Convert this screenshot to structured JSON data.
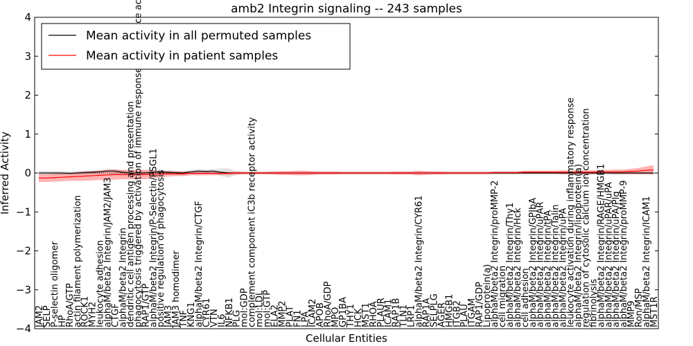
{
  "chart_data": {
    "type": "line",
    "title": "amb2 Integrin signaling -- 243 samples",
    "xlabel": "Cellular Entities",
    "ylabel": "Inferred Activity",
    "ylim": [
      -4,
      4
    ],
    "yticks": [
      -4,
      -3,
      -2,
      -1,
      0,
      1,
      2,
      3,
      4
    ],
    "ytick_labels": [
      "−4",
      "−3",
      "−2",
      "−1",
      "0",
      "1",
      "2",
      "3",
      "4"
    ],
    "legend": {
      "placement": "top-left",
      "entries": [
        {
          "label": "Mean activity in all permuted samples",
          "color": "#000000"
        },
        {
          "label": "Mean activity in patient samples",
          "color": "#ff0000"
        }
      ]
    },
    "categories": [
      "JAM2",
      "SELP",
      "P-selectin oligomer",
      "HP",
      "RhoA/GTP",
      "actin filament polymerization",
      "ROCK1",
      "MYH2",
      "leukocyte adhesion",
      "alphaM/beta2 Integrin/JAM2/JAM3",
      "CTGF",
      "alphaM/beta2 Integrin",
      "dendritic cell antigen processing and presentation",
      "phagocytosis triggered by activation of immune response cell surface activating receptor",
      "RAP1/GTP",
      "alphaM/beta2 Integrin/P-Selectin/PSGL1",
      "positive regulation of phagocytosis",
      "JAM3",
      "JAM3 homodimer",
      "TNF",
      "KNG1",
      "alphaM/beta2 Integrin/CTGF",
      "CYR61",
      "VTN",
      "IL6",
      "NFKB1",
      "PLG",
      "mol:GDP",
      "complement component iC3b receptor activity",
      "mol:LDL",
      "mol:GTP",
      "ELA2",
      "MMP2",
      "PLAT",
      "FN1",
      "LPA",
      "ICAM2",
      "APOB",
      "RhoA/GDP",
      "MPO",
      "GP1BA",
      "THY1",
      "HCK",
      "MST1",
      "RHOA",
      "PLAUR",
      "ICAM1",
      "RAP1B",
      "TLN1",
      "LRP1",
      "alphaM/beta2 Integrin/CYR61",
      "RAP1A",
      "SELPLG",
      "AGER",
      "HMGB1",
      "ITGB2",
      "PLAU",
      "ITGAM",
      "RAP1/GDP",
      "Lipoprotein(a)",
      "alphaM/beta2 Integrin/proMMP-2",
      "cell migration",
      "alphaM/beta2 Integrin/Thy1",
      "alphaM/beta2 Integrin/Hck",
      "cell adhesion",
      "alphaM/beta2 Integrin/GPIbA",
      "alphaM/beta2 Integrin/uPAR",
      "alphaM/beta2 Integrin/tPA",
      "alphaM/beta2 Integrin/Talin",
      "alphaM/beta2 Integrin/uPA",
      "leukocyte activation during inflammatory response",
      "alphaM/beta2 Integrin/lipoprotein(a)",
      "regulation of cytosolic calcium ion concentration",
      "fibrinolysis",
      "alphaM/beta2 Integrin/RAGE/HMGB1",
      "alphaM/beta2 Integrin/uPAR/uPA",
      "alphaM/beta2 Integrin/uPA/Plg",
      "alphaM/beta2 Integrin/proMMP-9",
      "MMP9",
      "Ron/MSP",
      "alphaM/beta2 Integrin/ICAM1",
      "MST1R"
    ],
    "series": [
      {
        "name": "Mean activity in all permuted samples",
        "color": "#000000",
        "values": [
          0.0,
          0.0,
          0.0,
          0.0,
          -0.01,
          0.0,
          0.01,
          0.02,
          0.03,
          0.05,
          0.05,
          0.02,
          0.0,
          0.0,
          0.0,
          0.02,
          0.03,
          0.02,
          0.01,
          0.0,
          0.03,
          0.05,
          0.04,
          0.05,
          0.02,
          0.0,
          0.0,
          0.0,
          0.0,
          0.0,
          0.0,
          0.0,
          0.0,
          0.0,
          0.0,
          0.0,
          0.0,
          0.0,
          0.0,
          0.0,
          0.0,
          0.0,
          0.0,
          0.0,
          0.0,
          0.0,
          0.0,
          0.0,
          0.0,
          0.0,
          0.0,
          0.0,
          0.0,
          0.0,
          0.0,
          0.0,
          0.0,
          0.0,
          0.0,
          0.0,
          0.0,
          0.0,
          0.0,
          0.0,
          0.0,
          0.0,
          0.0,
          0.0,
          0.0,
          0.0,
          0.0,
          0.0,
          0.0,
          0.0,
          0.0,
          0.0,
          0.0,
          0.0,
          0.0,
          0.0,
          0.0,
          0.0
        ],
        "band": [
          0.05,
          0.05,
          0.05,
          0.05,
          0.05,
          0.05,
          0.05,
          0.05,
          0.05,
          0.05,
          0.05,
          0.05,
          0.06,
          0.06,
          0.06,
          0.05,
          0.05,
          0.05,
          0.05,
          0.05,
          0.05,
          0.05,
          0.05,
          0.05,
          0.1,
          0.12,
          0.05,
          0.04,
          0.04,
          0.04,
          0.04,
          0.04,
          0.04,
          0.04,
          0.04,
          0.04,
          0.04,
          0.04,
          0.04,
          0.04,
          0.04,
          0.04,
          0.04,
          0.04,
          0.04,
          0.04,
          0.04,
          0.04,
          0.04,
          0.04,
          0.04,
          0.04,
          0.04,
          0.04,
          0.04,
          0.04,
          0.04,
          0.04,
          0.04,
          0.04,
          0.04,
          0.04,
          0.04,
          0.04,
          0.04,
          0.04,
          0.04,
          0.04,
          0.04,
          0.04,
          0.04,
          0.04,
          0.04,
          0.04,
          0.04,
          0.04,
          0.04,
          0.04,
          0.04,
          0.04,
          0.04,
          0.04
        ]
      },
      {
        "name": "Mean activity in patient samples",
        "color": "#ff0000",
        "values": [
          -0.13,
          -0.13,
          -0.12,
          -0.11,
          -0.1,
          -0.09,
          -0.08,
          -0.07,
          -0.06,
          -0.05,
          -0.04,
          -0.04,
          -0.04,
          -0.04,
          -0.04,
          -0.03,
          -0.03,
          -0.02,
          -0.02,
          -0.02,
          -0.01,
          -0.01,
          -0.01,
          -0.01,
          -0.01,
          -0.01,
          0.0,
          0.0,
          0.0,
          0.0,
          0.0,
          0.0,
          0.0,
          0.0,
          0.0,
          0.0,
          0.0,
          0.0,
          0.0,
          0.0,
          0.0,
          0.0,
          0.0,
          0.0,
          0.0,
          0.0,
          0.0,
          0.0,
          0.0,
          0.0,
          0.0,
          0.0,
          0.0,
          0.0,
          0.0,
          0.0,
          0.0,
          0.0,
          0.0,
          0.0,
          0.01,
          0.01,
          0.01,
          0.01,
          0.02,
          0.02,
          0.02,
          0.02,
          0.02,
          0.02,
          0.02,
          0.02,
          0.02,
          0.02,
          0.03,
          0.03,
          0.03,
          0.03,
          0.04,
          0.05,
          0.07,
          0.08
        ],
        "band": [
          0.1,
          0.1,
          0.1,
          0.1,
          0.1,
          0.11,
          0.12,
          0.12,
          0.12,
          0.13,
          0.13,
          0.12,
          0.12,
          0.12,
          0.12,
          0.1,
          0.08,
          0.07,
          0.06,
          0.06,
          0.05,
          0.05,
          0.05,
          0.05,
          0.04,
          0.04,
          0.04,
          0.03,
          0.03,
          0.03,
          0.03,
          0.04,
          0.05,
          0.05,
          0.06,
          0.06,
          0.05,
          0.04,
          0.04,
          0.04,
          0.03,
          0.03,
          0.03,
          0.03,
          0.03,
          0.03,
          0.03,
          0.04,
          0.04,
          0.04,
          0.06,
          0.05,
          0.04,
          0.04,
          0.03,
          0.03,
          0.03,
          0.03,
          0.03,
          0.03,
          0.03,
          0.03,
          0.03,
          0.03,
          0.04,
          0.04,
          0.04,
          0.04,
          0.04,
          0.05,
          0.05,
          0.05,
          0.05,
          0.05,
          0.05,
          0.05,
          0.06,
          0.06,
          0.07,
          0.08,
          0.1,
          0.12
        ]
      }
    ]
  }
}
